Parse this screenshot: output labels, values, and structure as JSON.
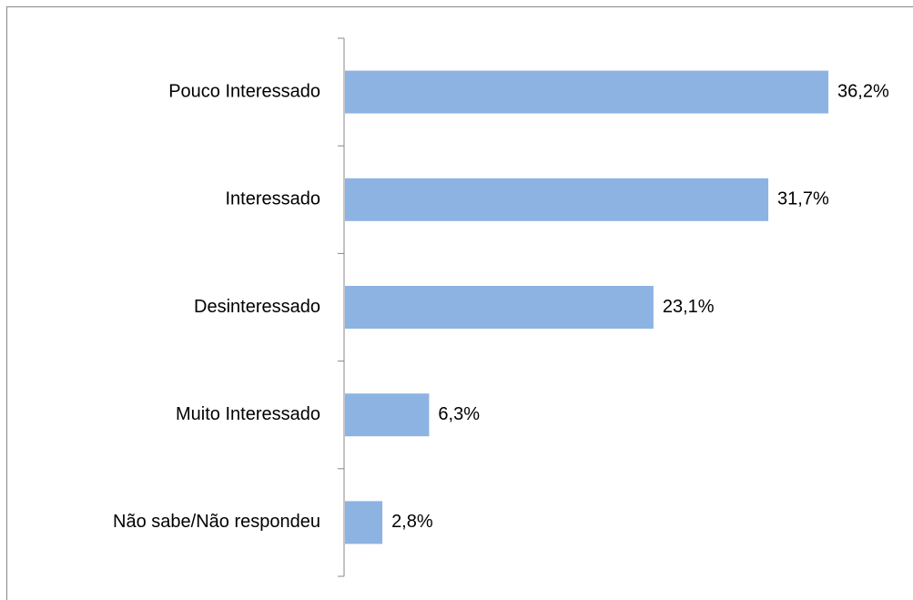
{
  "chart_data": {
    "type": "bar",
    "orientation": "horizontal",
    "categories": [
      "Pouco Interessado",
      "Interessado",
      "Desinteressado",
      "Muito Interessado",
      "Não sabe/Não respondeu"
    ],
    "values": [
      36.2,
      31.7,
      23.1,
      6.3,
      2.8
    ],
    "value_labels": [
      "36,2%",
      "31,7%",
      "23,1%",
      "6,3%",
      "2,8%"
    ],
    "color": "#8db3e2"
  }
}
